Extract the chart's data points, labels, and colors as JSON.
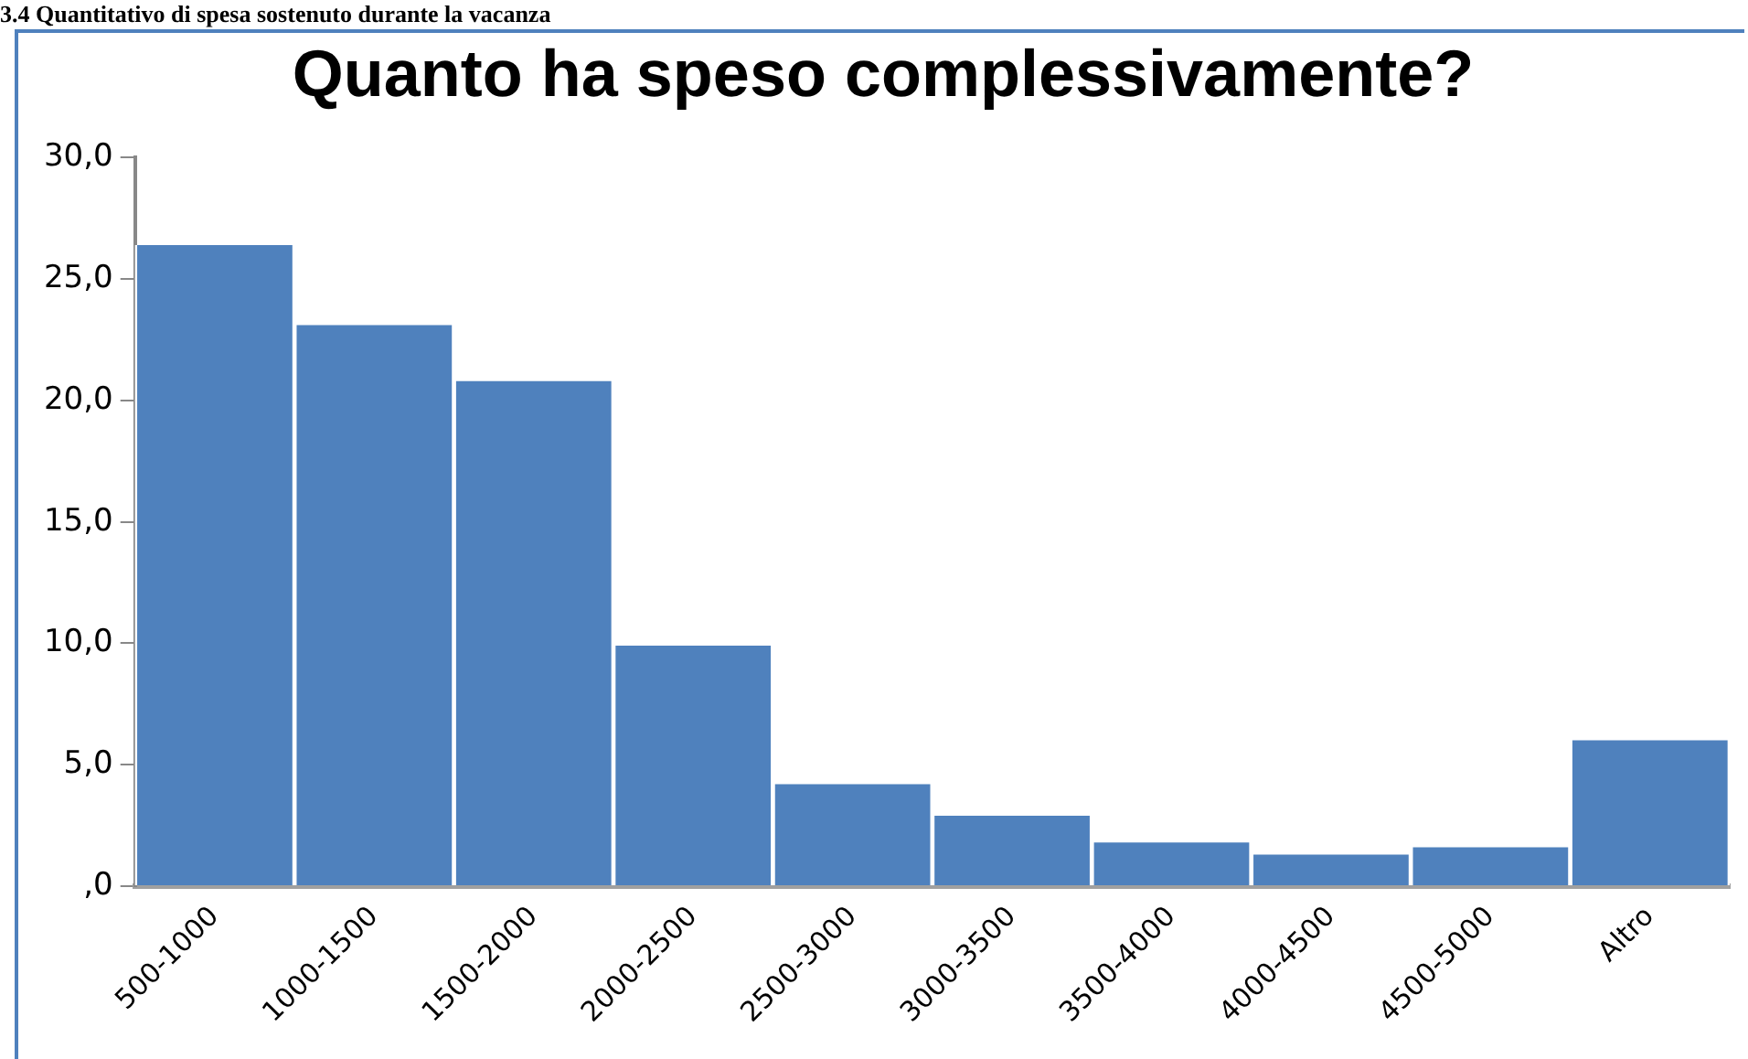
{
  "chart_data": {
    "type": "bar",
    "title": "Quanto ha speso complessivamente?",
    "annotations": [
      "3.4 Quantitativo di spesa sostenuto durante la vacanza"
    ],
    "categories": [
      "500-1000",
      "1000-1500",
      "1500-2000",
      "2000-2500",
      "2500-3000",
      "3000-3500",
      "3500-4000",
      "4000-4500",
      "4500-5000",
      "Altro"
    ],
    "values": [
      26.4,
      23.1,
      20.8,
      9.9,
      4.2,
      2.9,
      1.8,
      1.3,
      1.6,
      6.0
    ],
    "color": "#4f81bd",
    "ylim": [
      0,
      30
    ],
    "yticks": [
      {
        "value": 0,
        "label": ",0"
      },
      {
        "value": 5,
        "label": "5,0"
      },
      {
        "value": 10,
        "label": "10,0"
      },
      {
        "value": 15,
        "label": "15,0"
      },
      {
        "value": 20,
        "label": "20,0"
      },
      {
        "value": 25,
        "label": "25,0"
      },
      {
        "value": 30,
        "label": "30,0"
      }
    ],
    "grid": false,
    "legend": false
  }
}
